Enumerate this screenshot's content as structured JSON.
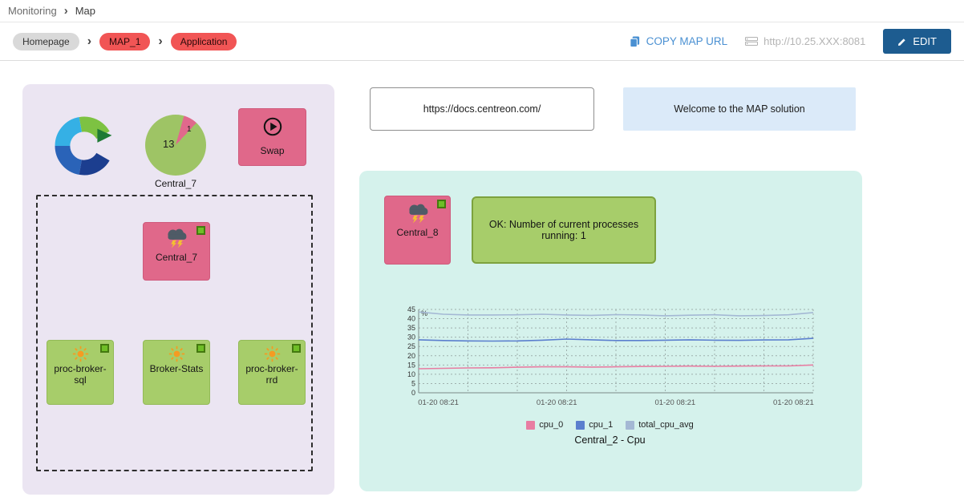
{
  "header": {
    "section": "Monitoring",
    "page": "Map"
  },
  "toolbar": {
    "breadcrumb": [
      {
        "label": "Homepage"
      },
      {
        "label": "MAP_1"
      },
      {
        "label": "Application"
      }
    ],
    "copy_label": "COPY MAP URL",
    "server_url": "http://10.25.XXX:8081",
    "edit_label": "EDIT"
  },
  "widgets": {
    "docs_link": "https://docs.centreon.com/",
    "welcome": "Welcome to the MAP solution"
  },
  "left_panel": {
    "pie": {
      "total": "13",
      "slice": "1",
      "label": "Central_7"
    },
    "swap_label": "Swap",
    "central7_label": "Central_7",
    "nodes": [
      {
        "label": "proc-broker-sql"
      },
      {
        "label": "Broker-Stats"
      },
      {
        "label": "proc-broker-rrd"
      }
    ]
  },
  "right_panel": {
    "central8_label": "Central_8",
    "status_text": "OK: Number of current processes running: 1"
  },
  "chart_data": {
    "type": "line",
    "title": "Central_2 - Cpu",
    "xlabel": "",
    "ylabel": "%",
    "ylim": [
      0,
      45
    ],
    "yticks": [
      0,
      5,
      10,
      15,
      20,
      25,
      30,
      35,
      40,
      45
    ],
    "x_ticklabels": [
      "01-20 08:21",
      "01-20 08:21",
      "01-20 08:21",
      "01-20 08:21"
    ],
    "grid": true,
    "legend_position": "bottom",
    "series": [
      {
        "name": "cpu_0",
        "color": "#e87da2",
        "values": [
          13.0,
          13.2,
          13.4,
          13.5,
          13.8,
          14.0,
          14.0,
          13.9,
          14.0,
          14.2,
          14.3,
          14.4,
          14.3,
          14.4,
          14.5,
          14.5,
          15.0
        ]
      },
      {
        "name": "cpu_1",
        "color": "#5b7fce",
        "values": [
          28.6,
          28.2,
          28.0,
          27.9,
          28.0,
          28.4,
          29.0,
          28.6,
          28.2,
          28.2,
          28.4,
          28.6,
          28.4,
          28.3,
          28.5,
          28.6,
          29.4
        ]
      },
      {
        "name": "total_cpu_avg",
        "color": "#a4b8d4",
        "values": [
          43.6,
          42.4,
          42.0,
          42.0,
          42.1,
          42.4,
          42.0,
          41.8,
          42.2,
          42.0,
          41.6,
          41.9,
          42.1,
          41.6,
          41.7,
          42.1,
          43.3
        ]
      }
    ]
  },
  "colors": {
    "node_pink": "#e0688a",
    "node_green": "#a7cd6a",
    "status_ok": "#6fbe27",
    "panel_left_bg": "#ebe5f2",
    "panel_right_bg": "#d5f2ec",
    "accent_blue": "#4a90d2",
    "edit_button_bg": "#1d5c90",
    "pill_red": "#f15555",
    "pill_gray": "#d9d9d9",
    "welcome_bg": "#dbeaf9"
  }
}
